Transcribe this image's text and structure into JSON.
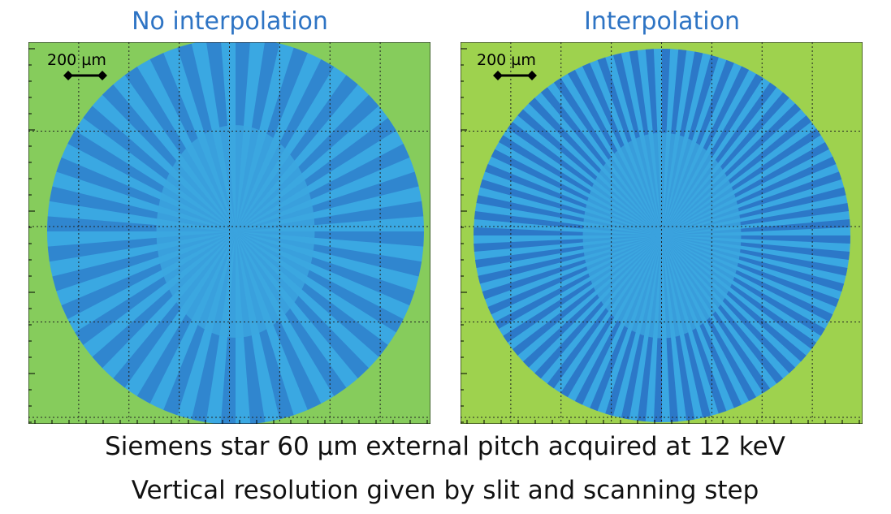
{
  "panels": [
    {
      "title": "No interpolation",
      "scale_label": "200 µm"
    },
    {
      "title": "Interpolation",
      "scale_label": "200 µm"
    }
  ],
  "caption": [
    "Siemens star 60 µm external pitch acquired at 12 keV",
    "Vertical resolution given by slit and scanning step"
  ]
}
